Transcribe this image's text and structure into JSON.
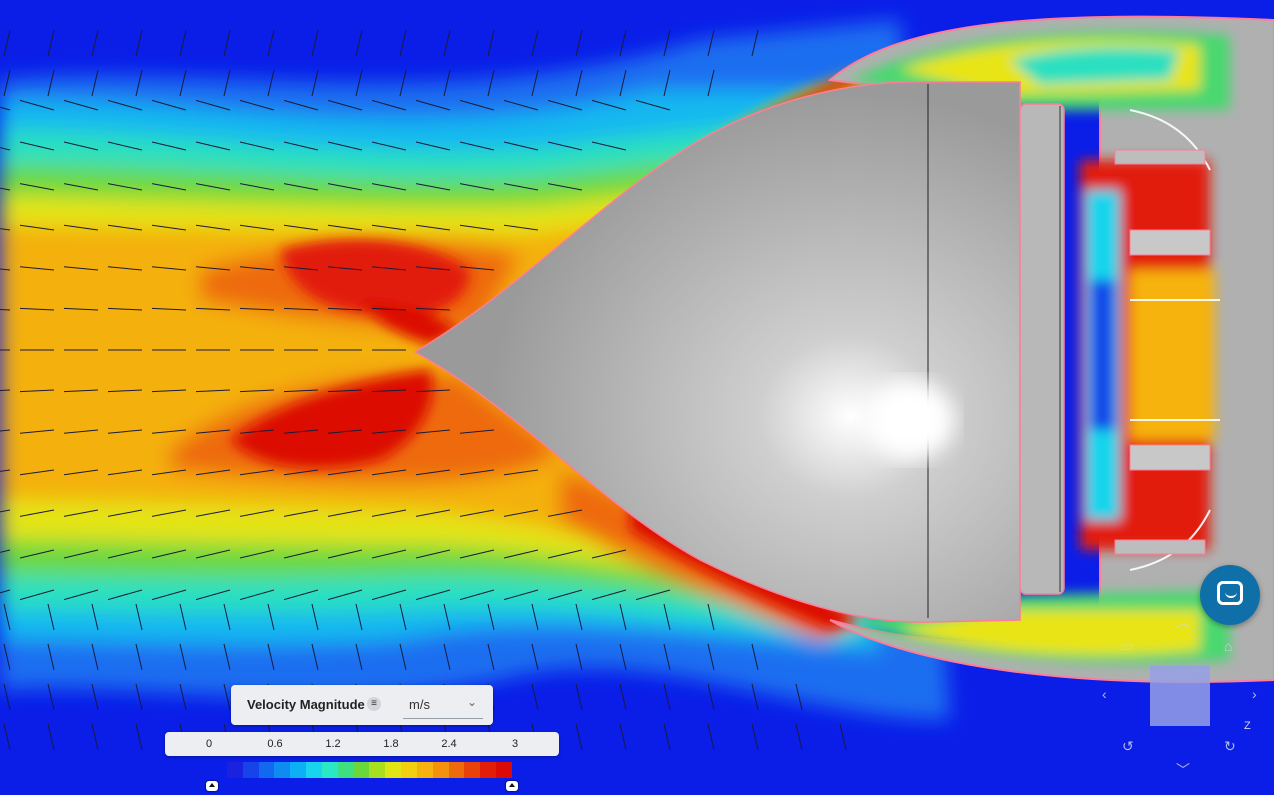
{
  "legend": {
    "title": "Velocity Magnitude",
    "menu_icon": "list-icon",
    "unit": "m/s",
    "ticks": [
      "0",
      "0.6",
      "1.2",
      "1.8",
      "2.4",
      "3"
    ],
    "colors": [
      "#1a22e0",
      "#1644e8",
      "#1268ee",
      "#0e8cf2",
      "#0cb0f4",
      "#18d4ec",
      "#2ae8c4",
      "#3ee080",
      "#6ad83a",
      "#a8e020",
      "#e0e614",
      "#f2d010",
      "#f6b20e",
      "#f4920c",
      "#ee6a0a",
      "#e84208",
      "#e21e08",
      "#dc0a06"
    ]
  },
  "viewport": {
    "background": "#0a1ee8",
    "body_color": "#b9b9b9"
  },
  "chat_button": {
    "icon": "chat-icon"
  },
  "view_controls": {
    "camera_icon": "camera-icon",
    "home_icon": "home-icon",
    "rotate_left_icon": "rotate-left-icon",
    "rotate_right_icon": "rotate-right-icon",
    "axis_label": "Z"
  }
}
